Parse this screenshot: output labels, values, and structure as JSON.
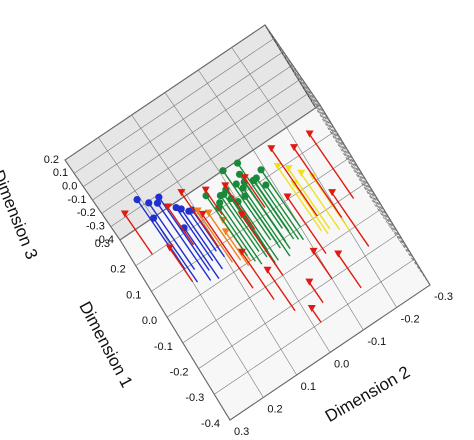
{
  "chart_data": {
    "type": "scatter3d",
    "xlabel": "Dimension 1",
    "ylabel": "Dimension 2",
    "zlabel": "Dimension 3",
    "xlim": [
      -0.4,
      0.3
    ],
    "ylim": [
      -0.3,
      0.3
    ],
    "zlim": [
      -0.4,
      0.2
    ],
    "xticks": [
      0.3,
      0.2,
      0.1,
      {
        "value": 0,
        "label": "0.0"
      },
      -0.1,
      -0.2,
      -0.3,
      -0.4
    ],
    "yticks": [
      0.3,
      0.2,
      0.1,
      {
        "value": 0,
        "label": "0.0"
      },
      -0.1,
      -0.2,
      -0.3
    ],
    "zticks": [
      0.2,
      0.1,
      {
        "value": 0,
        "label": "0.0"
      },
      -0.1,
      -0.2,
      -0.3,
      -0.4
    ],
    "grid": true,
    "series": [
      {
        "color": "#1f2fd0",
        "marker": "circle",
        "x": [
          0.05,
          0.08,
          0.03,
          0.1,
          0.06,
          0.02,
          0.07,
          0.04,
          0.09,
          0.01
        ],
        "y": [
          0.15,
          0.18,
          0.12,
          0.2,
          0.1,
          0.16,
          0.13,
          0.19,
          0.11,
          0.14
        ],
        "z": [
          0.15,
          0.1,
          0.05,
          0.12,
          -0.05,
          0.18,
          0.0,
          0.08,
          -0.1,
          -0.02
        ]
      },
      {
        "color": "#f08020",
        "marker": "triangle",
        "x": [
          0.02,
          0.0,
          0.03,
          -0.01
        ],
        "y": [
          0.07,
          0.05,
          0.09,
          0.06
        ],
        "z": [
          -0.05,
          -0.1,
          -0.02,
          -0.15
        ]
      },
      {
        "color": "#1a8a3a",
        "marker": "circle",
        "x": [
          -0.02,
          0.0,
          -0.04,
          0.01,
          -0.03,
          0.02,
          -0.05,
          -0.01,
          0.03,
          -0.02,
          0.0,
          -0.06,
          0.01,
          -0.03,
          -0.04,
          0.02,
          -0.01,
          0.0,
          -0.05,
          -0.02
        ],
        "y": [
          -0.03,
          0.0,
          -0.05,
          0.02,
          -0.08,
          -0.02,
          -0.01,
          0.04,
          -0.06,
          0.01,
          -0.1,
          -0.04,
          -0.07,
          0.03,
          -0.09,
          0.05,
          -0.05,
          -0.03,
          0.0,
          -0.07
        ],
        "z": [
          0.08,
          0.05,
          0.1,
          0.02,
          0.06,
          0.12,
          0.04,
          0.0,
          0.09,
          0.07,
          0.03,
          0.11,
          -0.02,
          0.06,
          0.01,
          0.05,
          0.1,
          -0.05,
          0.08,
          0.04
        ]
      },
      {
        "color": "#f0e020",
        "marker": "triangle",
        "x": [
          -0.06,
          -0.08,
          -0.05,
          -0.1,
          -0.07
        ],
        "y": [
          -0.16,
          -0.18,
          -0.14,
          -0.2,
          -0.15
        ],
        "z": [
          0.05,
          0.02,
          0.08,
          0.0,
          -0.03
        ]
      },
      {
        "color": "#e01a10",
        "marker": "triangle",
        "x": [
          0.2,
          0.1,
          0.05,
          -0.1,
          -0.2,
          -0.15,
          0.0,
          -0.05,
          -0.25,
          0.15,
          -0.12,
          -0.3,
          0.08,
          -0.18,
          -0.08,
          0.12,
          -0.22,
          -0.02,
          0.18,
          -0.28
        ],
        "y": [
          0.25,
          0.1,
          0.2,
          0.0,
          -0.1,
          0.05,
          -0.15,
          -0.2,
          -0.05,
          0.15,
          -0.12,
          -0.02,
          0.0,
          -0.22,
          0.08,
          -0.05,
          0.02,
          -0.25,
          0.05,
          -0.15
        ],
        "z": [
          -0.1,
          0.0,
          -0.15,
          0.05,
          -0.2,
          -0.05,
          0.1,
          0.12,
          -0.25,
          -0.12,
          0.02,
          -0.3,
          -0.08,
          0.0,
          0.15,
          -0.18,
          -0.1,
          0.08,
          -0.22,
          -0.15
        ]
      }
    ]
  }
}
